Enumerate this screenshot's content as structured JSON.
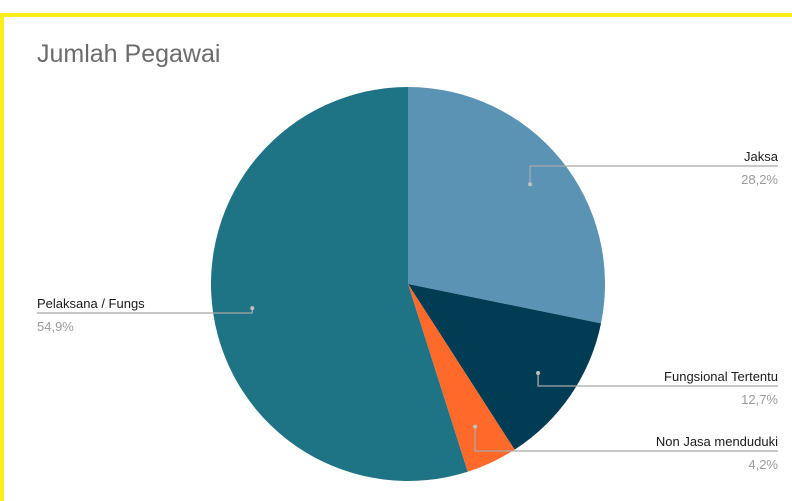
{
  "chart_data": {
    "type": "pie",
    "title": "Jumlah Pegawai",
    "colors": [
      "#5b93b5",
      "#003d55",
      "#ff6a2b",
      "#1e7485"
    ],
    "slices": [
      {
        "label": "Jaksa",
        "value": 28.2,
        "percent_label": "28,2%"
      },
      {
        "label": "Fungsional Tertentu",
        "value": 12.7,
        "percent_label": "12,7%"
      },
      {
        "label": "Non Jasa menduduki",
        "value": 4.2,
        "percent_label": "4,2%"
      },
      {
        "label": "Pelaksana / Fungs",
        "value": 54.9,
        "percent_label": "54,9%"
      }
    ],
    "legend": "labels-outside-with-leader-lines",
    "start_angle": "top, clockwise"
  }
}
